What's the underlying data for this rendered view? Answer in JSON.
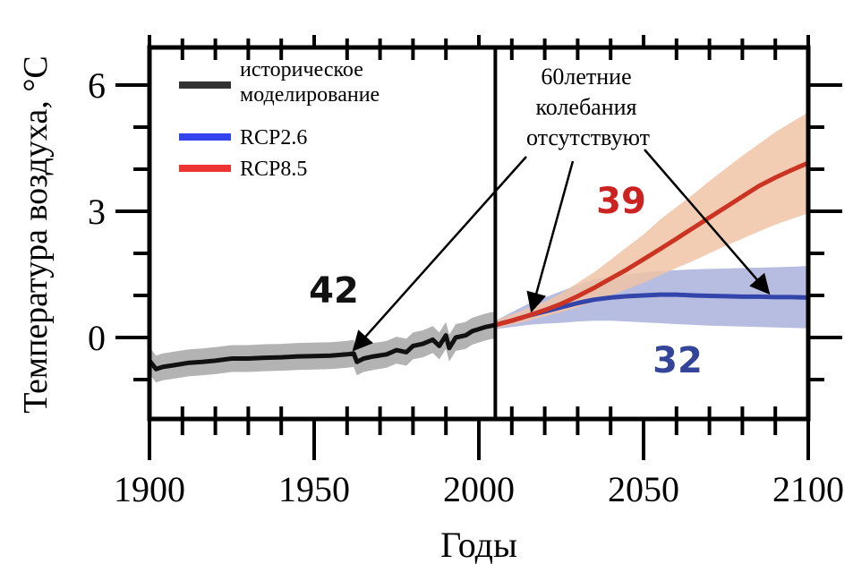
{
  "chart_data": {
    "type": "line",
    "xlabel": "Годы",
    "ylabel": "Температура воздуха, °C",
    "xlim": [
      1900,
      2100
    ],
    "ylim": [
      -2,
      7
    ],
    "x_ticks": [
      1900,
      1950,
      2000,
      2050,
      2100
    ],
    "y_ticks": [
      0,
      3,
      6
    ],
    "legend": {
      "position": "top-left",
      "entries": [
        {
          "label_line1": "историческое",
          "label_line2": "моделирование",
          "color": "#333333"
        },
        {
          "label_line1": "RCP2.6",
          "label_line2": "",
          "color": "#3344ee"
        },
        {
          "label_line1": "RCP8.5",
          "label_line2": "",
          "color": "#ee3333"
        }
      ]
    },
    "divider_x": 2005,
    "series": [
      {
        "name": "историческое моделирование",
        "color": "#111111",
        "band_color": "#a6a6a6",
        "band_halfwidth": 0.32,
        "x": [
          1900,
          1902,
          1904,
          1908,
          1912,
          1916,
          1920,
          1925,
          1930,
          1935,
          1940,
          1945,
          1950,
          1955,
          1960,
          1962,
          1963,
          1965,
          1968,
          1972,
          1975,
          1978,
          1980,
          1983,
          1986,
          1988,
          1990,
          1991,
          1993,
          1996,
          1998,
          2000,
          2002,
          2005
        ],
        "values": [
          -0.55,
          -0.75,
          -0.7,
          -0.65,
          -0.6,
          -0.58,
          -0.55,
          -0.5,
          -0.5,
          -0.48,
          -0.47,
          -0.45,
          -0.44,
          -0.43,
          -0.4,
          -0.38,
          -0.58,
          -0.5,
          -0.45,
          -0.4,
          -0.3,
          -0.35,
          -0.2,
          -0.15,
          -0.05,
          -0.2,
          0.05,
          -0.25,
          0.0,
          0.05,
          0.15,
          0.2,
          0.25,
          0.3
        ]
      },
      {
        "name": "RCP2.6",
        "color": "#3344aa",
        "band_color": "#a9b1dc",
        "x": [
          2005,
          2010,
          2015,
          2020,
          2025,
          2030,
          2035,
          2040,
          2045,
          2050,
          2055,
          2060,
          2065,
          2070,
          2075,
          2080,
          2085,
          2090,
          2095,
          2100
        ],
        "values": [
          0.3,
          0.4,
          0.52,
          0.62,
          0.72,
          0.82,
          0.9,
          0.95,
          0.98,
          1.0,
          1.02,
          1.02,
          1.0,
          0.99,
          0.98,
          0.97,
          0.97,
          0.96,
          0.96,
          0.95
        ],
        "band_low": [
          0.2,
          0.25,
          0.3,
          0.33,
          0.35,
          0.38,
          0.4,
          0.4,
          0.38,
          0.36,
          0.34,
          0.32,
          0.3,
          0.28,
          0.27,
          0.26,
          0.25,
          0.24,
          0.23,
          0.22
        ],
        "band_high": [
          0.4,
          0.6,
          0.8,
          0.95,
          1.1,
          1.25,
          1.38,
          1.45,
          1.5,
          1.55,
          1.58,
          1.6,
          1.62,
          1.63,
          1.64,
          1.65,
          1.66,
          1.67,
          1.68,
          1.7
        ]
      },
      {
        "name": "RCP8.5",
        "color": "#cc3322",
        "band_color": "#f0c3a6",
        "x": [
          2005,
          2010,
          2015,
          2020,
          2025,
          2030,
          2035,
          2040,
          2045,
          2050,
          2055,
          2060,
          2065,
          2070,
          2075,
          2080,
          2085,
          2090,
          2095,
          2100
        ],
        "values": [
          0.3,
          0.4,
          0.52,
          0.65,
          0.8,
          0.98,
          1.18,
          1.4,
          1.62,
          1.86,
          2.1,
          2.35,
          2.6,
          2.85,
          3.1,
          3.35,
          3.6,
          3.8,
          3.98,
          4.15
        ],
        "band_low": [
          0.22,
          0.3,
          0.4,
          0.5,
          0.6,
          0.72,
          0.86,
          1.0,
          1.15,
          1.3,
          1.48,
          1.65,
          1.82,
          2.0,
          2.18,
          2.35,
          2.52,
          2.68,
          2.82,
          2.95
        ],
        "band_high": [
          0.4,
          0.55,
          0.7,
          0.85,
          1.05,
          1.3,
          1.55,
          1.85,
          2.15,
          2.45,
          2.8,
          3.1,
          3.4,
          3.72,
          4.02,
          4.32,
          4.6,
          4.88,
          5.12,
          5.35
        ]
      }
    ],
    "annotations": {
      "callout_line1": "60летние",
      "callout_line2": "колебания",
      "callout_line3": "отсутствуют",
      "count_historical": "42",
      "count_rcp85": "39",
      "count_rcp26": "32",
      "color_historical": "#111111",
      "color_rcp85": "#cc2222",
      "color_rcp26": "#334499",
      "arrow_targets": [
        {
          "x": 1962,
          "y": -0.38
        },
        {
          "x": 2016,
          "y": 0.55
        },
        {
          "x": 2088,
          "y": 0.97
        }
      ]
    }
  }
}
